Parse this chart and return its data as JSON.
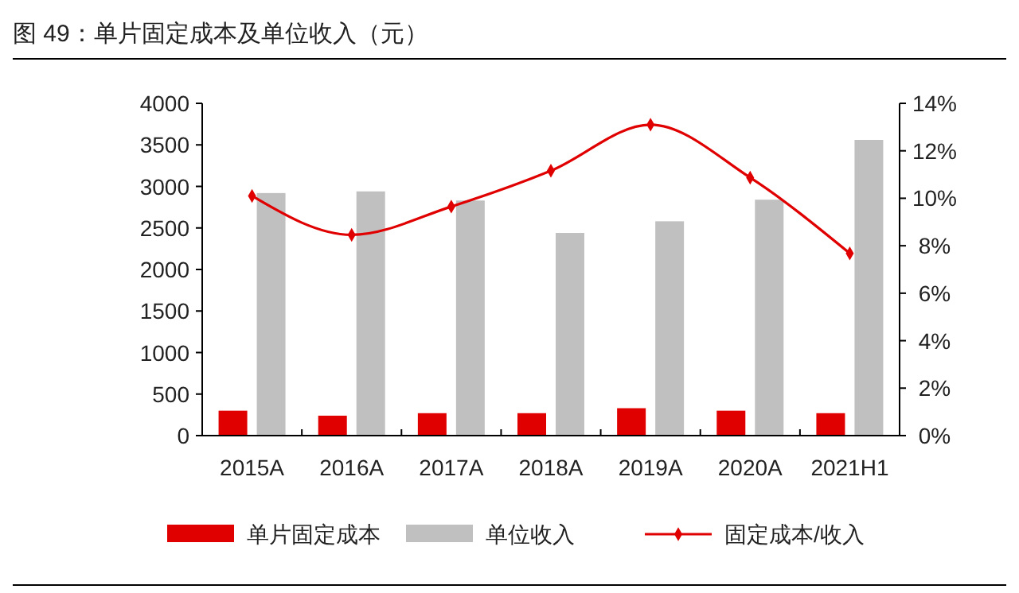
{
  "chart_data": {
    "type": "bar",
    "title": "图 49：单片固定成本及单位收入（元）",
    "categories": [
      "2015A",
      "2016A",
      "2017A",
      "2018A",
      "2019A",
      "2020A",
      "2021H1"
    ],
    "series": [
      {
        "name": "单片固定成本",
        "color": "#e00000",
        "values": [
          300,
          240,
          270,
          270,
          330,
          300,
          270
        ]
      },
      {
        "name": "单位收入",
        "color": "#c0c0c0",
        "values": [
          2920,
          2940,
          2830,
          2440,
          2580,
          2840,
          3560
        ]
      },
      {
        "name": "固定成本/收入",
        "type": "line",
        "axis": "y2",
        "color": "#e00000",
        "values": [
          10.1,
          8.46,
          9.65,
          11.16,
          13.1,
          10.87,
          7.68
        ]
      }
    ],
    "ylim": [
      0,
      4000
    ],
    "yticks": [
      0,
      500,
      1000,
      1500,
      2000,
      2500,
      3000,
      3500,
      4000
    ],
    "y2lim": [
      0,
      14
    ],
    "y2ticks": [
      {
        "value": 0,
        "label": "0%"
      },
      {
        "value": 2,
        "label": "2%"
      },
      {
        "value": 4,
        "label": "4%"
      },
      {
        "value": 6,
        "label": "6%"
      },
      {
        "value": 8,
        "label": "8%"
      },
      {
        "value": 10,
        "label": "10%"
      },
      {
        "value": 12,
        "label": "12%"
      },
      {
        "value": 14,
        "label": "14%"
      }
    ],
    "grid": false,
    "legend": "bottom",
    "marker": "diamond",
    "line_style": "solid"
  }
}
